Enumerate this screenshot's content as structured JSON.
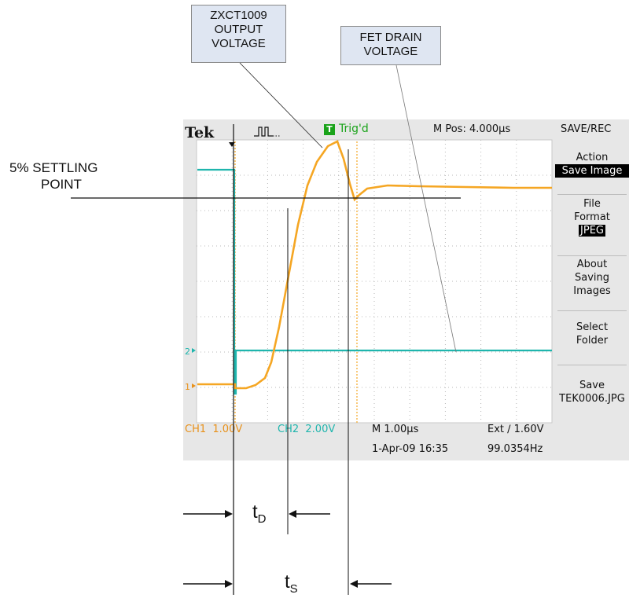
{
  "callouts": {
    "output_voltage": [
      "ZXCT1009",
      "OUTPUT",
      "VOLTAGE"
    ],
    "fet_drain": [
      "FET DRAIN",
      "VOLTAGE"
    ],
    "settling": [
      "5% SETTLING",
      "POINT"
    ]
  },
  "scope": {
    "brand": "Tek",
    "trigger_status": "Trig'd",
    "trigger_badge": "T",
    "m_pos": "M Pos: 4.000µs",
    "menu_title": "SAVE/REC",
    "menu": {
      "action_label": "Action",
      "action_value": "Save Image",
      "format_label1": "File",
      "format_label2": "Format",
      "format_value": "JPEG",
      "about": [
        "About",
        "Saving",
        "Images"
      ],
      "select": [
        "Select",
        "Folder"
      ],
      "save_label": "Save",
      "save_file": "TEK0006.JPG"
    },
    "ch1_label": "CH1  1.00V",
    "ch2_label": "CH2  2.00V",
    "timebase": "M 1.00µs",
    "date": "1-Apr-09 16:35",
    "trigger_setting": "Ext ∕ 1.60V",
    "frequency": "99.0354Hz",
    "ch1_marker": "1",
    "ch2_marker": "2",
    "colors": {
      "ch1": "#f5a623",
      "ch2": "#1fb5ad",
      "trig": "#1aa31a"
    }
  },
  "timing": {
    "td_symbol": "t",
    "td_sub": "D",
    "ts_symbol": "t",
    "ts_sub": "S"
  }
}
